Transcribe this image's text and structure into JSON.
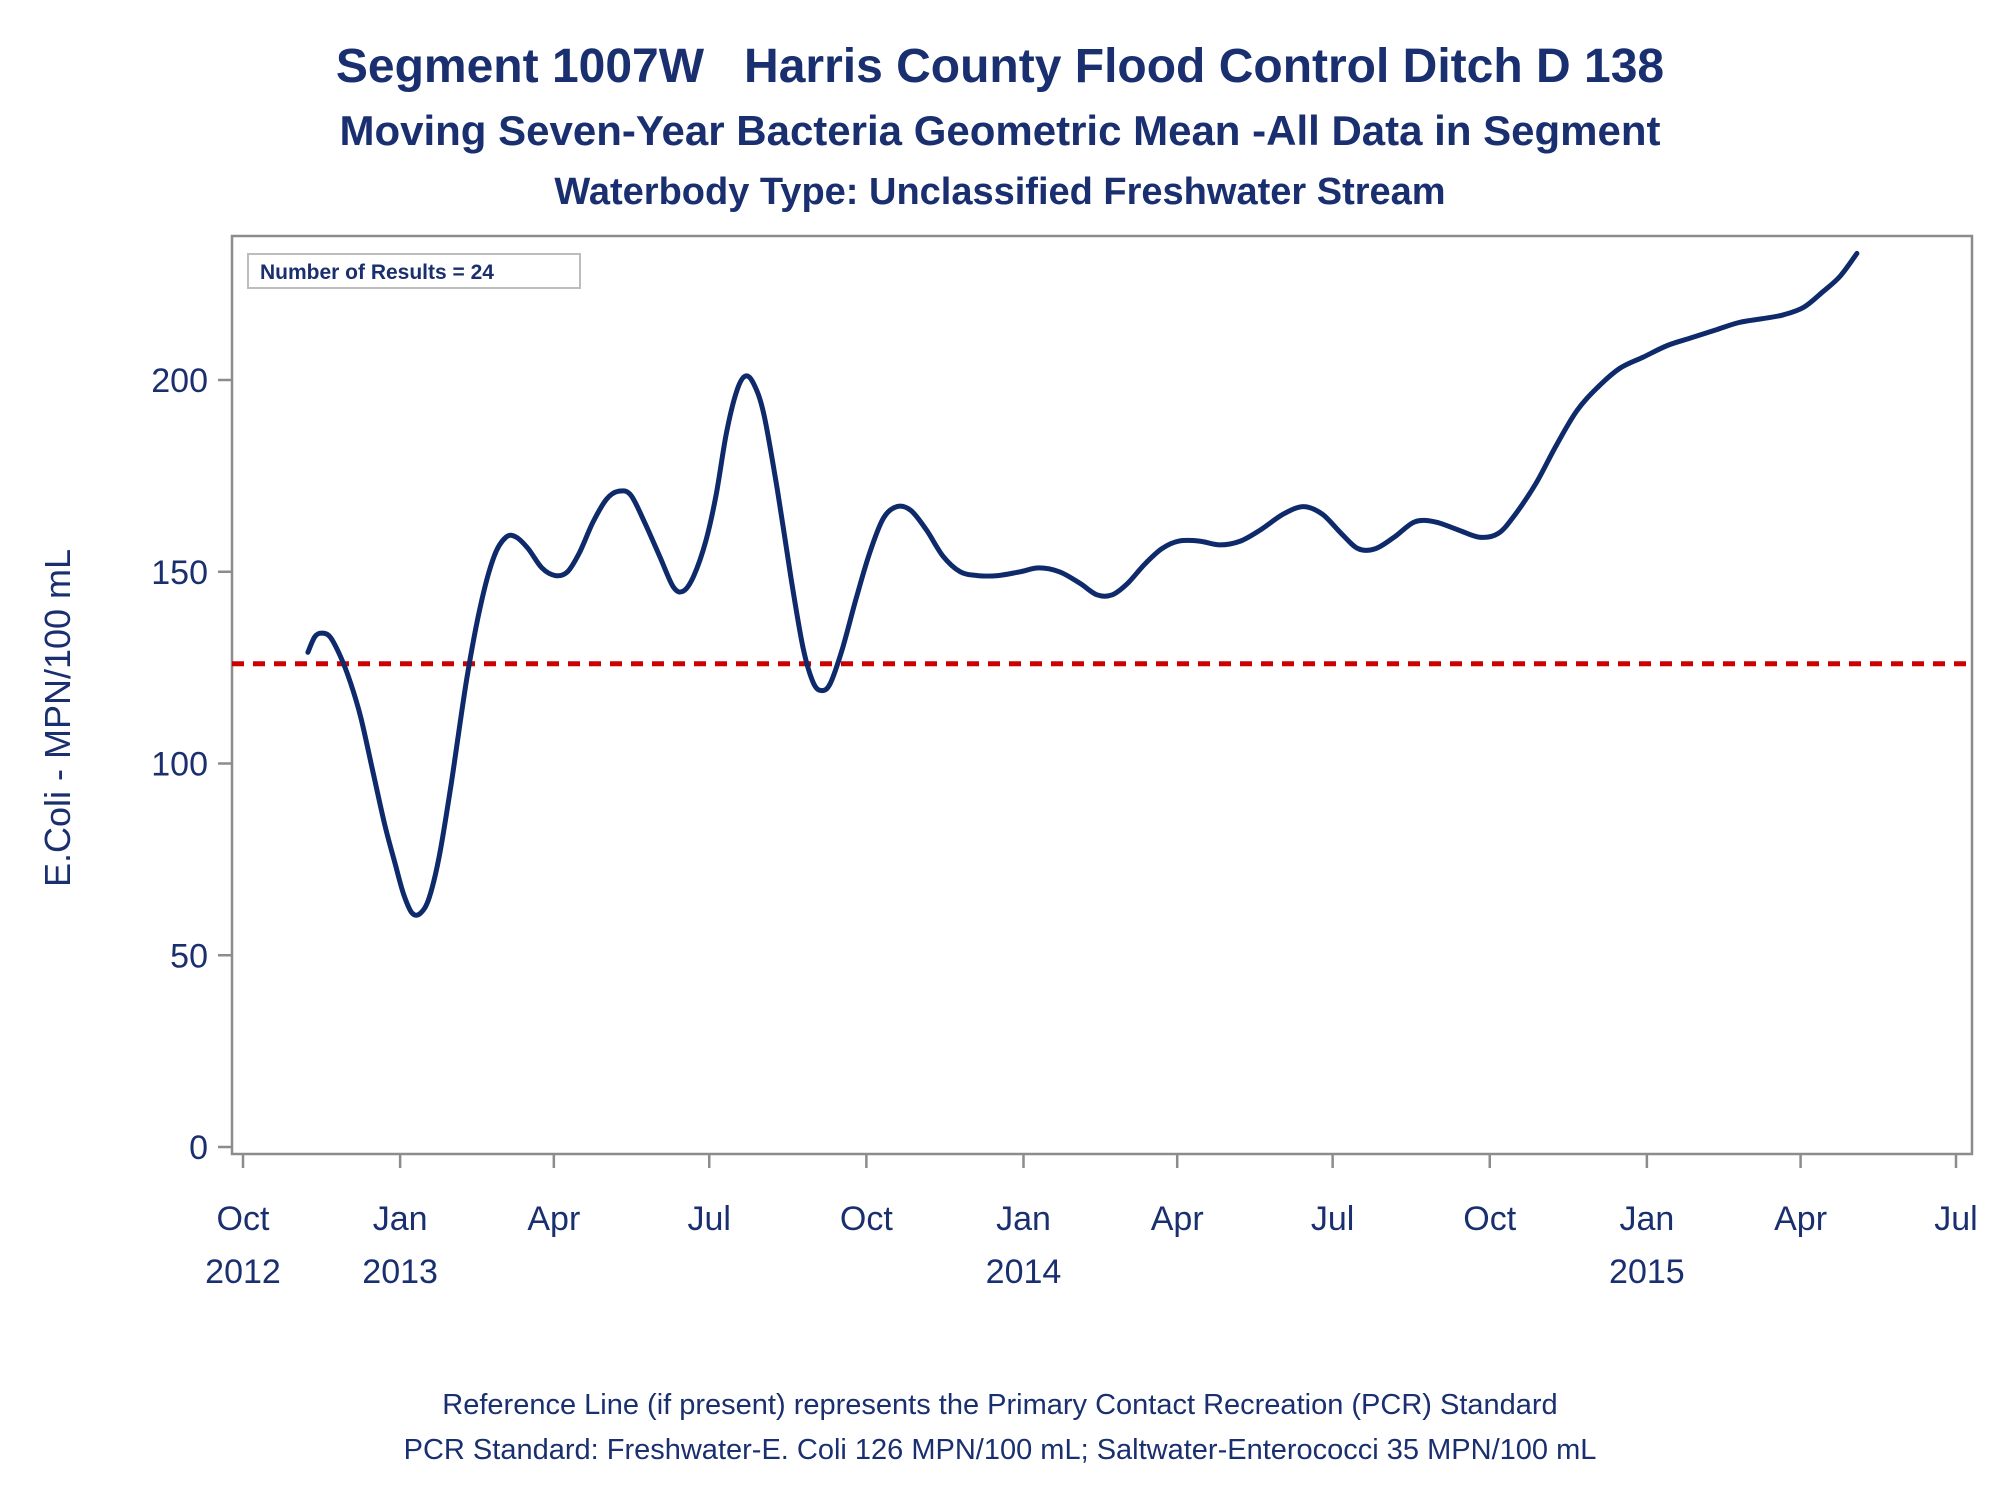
{
  "colors": {
    "text": "#1a2f6f",
    "series_line": "#0e2a6b",
    "reference_line": "#cc0000",
    "frame": "#8c8c8c",
    "background": "#ffffff"
  },
  "chart_data": {
    "type": "line",
    "title": "Segment 1007W   Harris County Flood Control Ditch D 138",
    "subtitle": "Moving Seven-Year Bacteria Geometric Mean -All Data in Segment",
    "subtitle2": "Waterbody Type: Unclassified Freshwater Stream",
    "xlabel": "",
    "ylabel": "E.Coli - MPN/100 mL",
    "inset_label": "Number of Results = 24",
    "ylim": [
      0,
      230
    ],
    "yticks": [
      0,
      50,
      100,
      150,
      200
    ],
    "xlim": [
      "2012-10-01",
      "2015-07-01"
    ],
    "xticks": [
      {
        "date": "2012-10-01",
        "label": "Oct",
        "year": "2012"
      },
      {
        "date": "2013-01-01",
        "label": "Jan",
        "year": "2013"
      },
      {
        "date": "2013-04-01",
        "label": "Apr",
        "year": ""
      },
      {
        "date": "2013-07-01",
        "label": "Jul",
        "year": ""
      },
      {
        "date": "2013-10-01",
        "label": "Oct",
        "year": ""
      },
      {
        "date": "2014-01-01",
        "label": "Jan",
        "year": "2014"
      },
      {
        "date": "2014-04-01",
        "label": "Apr",
        "year": ""
      },
      {
        "date": "2014-07-01",
        "label": "Jul",
        "year": ""
      },
      {
        "date": "2014-10-01",
        "label": "Oct",
        "year": ""
      },
      {
        "date": "2015-01-01",
        "label": "Jan",
        "year": "2015"
      },
      {
        "date": "2015-04-01",
        "label": "Apr",
        "year": ""
      },
      {
        "date": "2015-07-01",
        "label": "Jul",
        "year": ""
      }
    ],
    "reference_line": {
      "y": 126,
      "style": "dashed"
    },
    "series": [
      {
        "points": [
          {
            "x": "2012-11-08",
            "y": 129
          },
          {
            "x": "2012-11-12",
            "y": 133
          },
          {
            "x": "2012-11-16",
            "y": 134
          },
          {
            "x": "2012-11-21",
            "y": 133
          },
          {
            "x": "2012-11-27",
            "y": 128
          },
          {
            "x": "2012-12-03",
            "y": 121
          },
          {
            "x": "2012-12-09",
            "y": 112
          },
          {
            "x": "2012-12-16",
            "y": 98
          },
          {
            "x": "2012-12-23",
            "y": 84
          },
          {
            "x": "2012-12-29",
            "y": 74
          },
          {
            "x": "2013-01-03",
            "y": 66
          },
          {
            "x": "2013-01-08",
            "y": 61
          },
          {
            "x": "2013-01-13",
            "y": 61
          },
          {
            "x": "2013-01-18",
            "y": 65
          },
          {
            "x": "2013-01-24",
            "y": 76
          },
          {
            "x": "2013-01-31",
            "y": 95
          },
          {
            "x": "2013-02-09",
            "y": 122
          },
          {
            "x": "2013-02-17",
            "y": 141
          },
          {
            "x": "2013-02-25",
            "y": 154
          },
          {
            "x": "2013-03-04",
            "y": 159
          },
          {
            "x": "2013-03-10",
            "y": 159
          },
          {
            "x": "2013-03-17",
            "y": 156
          },
          {
            "x": "2013-03-25",
            "y": 151
          },
          {
            "x": "2013-04-02",
            "y": 149
          },
          {
            "x": "2013-04-09",
            "y": 150
          },
          {
            "x": "2013-04-16",
            "y": 155
          },
          {
            "x": "2013-04-24",
            "y": 163
          },
          {
            "x": "2013-05-02",
            "y": 169
          },
          {
            "x": "2013-05-09",
            "y": 171
          },
          {
            "x": "2013-05-16",
            "y": 170
          },
          {
            "x": "2013-05-24",
            "y": 163
          },
          {
            "x": "2013-06-02",
            "y": 154
          },
          {
            "x": "2013-06-10",
            "y": 146
          },
          {
            "x": "2013-06-16",
            "y": 145
          },
          {
            "x": "2013-06-22",
            "y": 149
          },
          {
            "x": "2013-06-29",
            "y": 158
          },
          {
            "x": "2013-07-05",
            "y": 170
          },
          {
            "x": "2013-07-11",
            "y": 186
          },
          {
            "x": "2013-07-17",
            "y": 197
          },
          {
            "x": "2013-07-22",
            "y": 201
          },
          {
            "x": "2013-07-27",
            "y": 199
          },
          {
            "x": "2013-08-02",
            "y": 191
          },
          {
            "x": "2013-08-10",
            "y": 171
          },
          {
            "x": "2013-08-18",
            "y": 148
          },
          {
            "x": "2013-08-25",
            "y": 130
          },
          {
            "x": "2013-08-31",
            "y": 121
          },
          {
            "x": "2013-09-05",
            "y": 119
          },
          {
            "x": "2013-09-10",
            "y": 121
          },
          {
            "x": "2013-09-17",
            "y": 130
          },
          {
            "x": "2013-09-25",
            "y": 143
          },
          {
            "x": "2013-10-03",
            "y": 155
          },
          {
            "x": "2013-10-11",
            "y": 164
          },
          {
            "x": "2013-10-19",
            "y": 167
          },
          {
            "x": "2013-10-27",
            "y": 166
          },
          {
            "x": "2013-11-05",
            "y": 161
          },
          {
            "x": "2013-11-15",
            "y": 154
          },
          {
            "x": "2013-11-25",
            "y": 150
          },
          {
            "x": "2013-12-05",
            "y": 149
          },
          {
            "x": "2013-12-17",
            "y": 149
          },
          {
            "x": "2013-12-30",
            "y": 150
          },
          {
            "x": "2014-01-10",
            "y": 151
          },
          {
            "x": "2014-01-22",
            "y": 150
          },
          {
            "x": "2014-02-03",
            "y": 147
          },
          {
            "x": "2014-02-13",
            "y": 144
          },
          {
            "x": "2014-02-22",
            "y": 144
          },
          {
            "x": "2014-03-03",
            "y": 147
          },
          {
            "x": "2014-03-13",
            "y": 152
          },
          {
            "x": "2014-03-23",
            "y": 156
          },
          {
            "x": "2014-04-02",
            "y": 158
          },
          {
            "x": "2014-04-14",
            "y": 158
          },
          {
            "x": "2014-04-26",
            "y": 157
          },
          {
            "x": "2014-05-08",
            "y": 158
          },
          {
            "x": "2014-05-20",
            "y": 161
          },
          {
            "x": "2014-06-02",
            "y": 165
          },
          {
            "x": "2014-06-14",
            "y": 167
          },
          {
            "x": "2014-06-25",
            "y": 165
          },
          {
            "x": "2014-07-06",
            "y": 160
          },
          {
            "x": "2014-07-16",
            "y": 156
          },
          {
            "x": "2014-07-26",
            "y": 156
          },
          {
            "x": "2014-08-06",
            "y": 159
          },
          {
            "x": "2014-08-18",
            "y": 163
          },
          {
            "x": "2014-08-30",
            "y": 163
          },
          {
            "x": "2014-09-12",
            "y": 161
          },
          {
            "x": "2014-09-25",
            "y": 159
          },
          {
            "x": "2014-10-06",
            "y": 160
          },
          {
            "x": "2014-10-16",
            "y": 165
          },
          {
            "x": "2014-10-28",
            "y": 173
          },
          {
            "x": "2014-11-09",
            "y": 183
          },
          {
            "x": "2014-11-21",
            "y": 192
          },
          {
            "x": "2014-12-03",
            "y": 198
          },
          {
            "x": "2014-12-16",
            "y": 203
          },
          {
            "x": "2014-12-30",
            "y": 206
          },
          {
            "x": "2015-01-13",
            "y": 209
          },
          {
            "x": "2015-01-27",
            "y": 211
          },
          {
            "x": "2015-02-10",
            "y": 213
          },
          {
            "x": "2015-02-24",
            "y": 215
          },
          {
            "x": "2015-03-10",
            "y": 216
          },
          {
            "x": "2015-03-22",
            "y": 217
          },
          {
            "x": "2015-04-03",
            "y": 219
          },
          {
            "x": "2015-04-14",
            "y": 223
          },
          {
            "x": "2015-04-24",
            "y": 227
          },
          {
            "x": "2015-05-04",
            "y": 233
          }
        ]
      }
    ],
    "grid": false,
    "legend": "none"
  },
  "footnotes": {
    "line1": "Reference Line (if present) represents the Primary Contact Recreation (PCR) Standard",
    "line2": "PCR Standard: Freshwater-E. Coli 126 MPN/100 mL; Saltwater-Enterococci 35 MPN/100 mL"
  }
}
